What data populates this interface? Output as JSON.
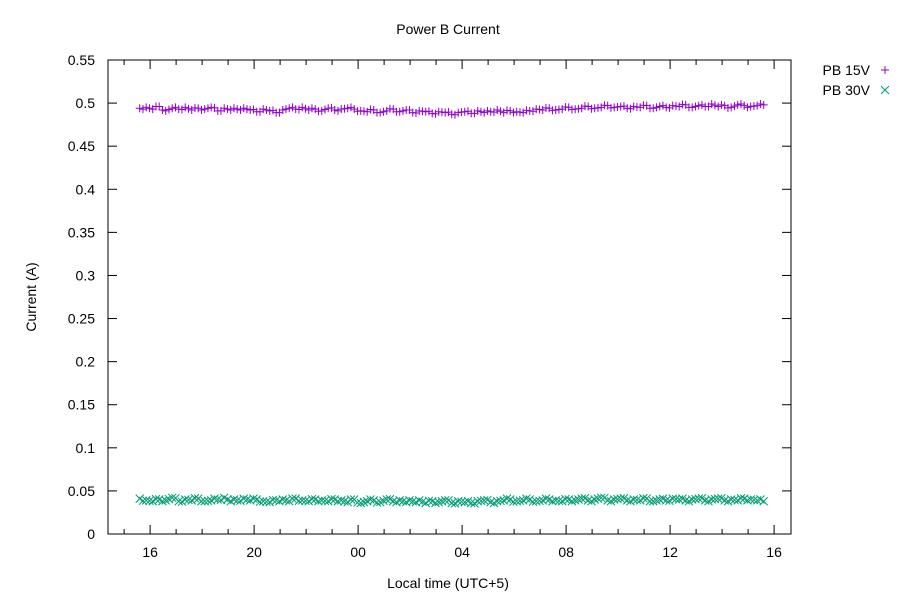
{
  "chart_data": {
    "type": "scatter",
    "title": "Power B Current",
    "xlabel": "Local time (UTC+5)",
    "ylabel": "Current (A)",
    "xlim_hours": [
      14.38,
      40.65
    ],
    "ylim": [
      0,
      0.55
    ],
    "x_ticks": [
      {
        "hour": 16,
        "label": "16"
      },
      {
        "hour": 20,
        "label": "20"
      },
      {
        "hour": 24,
        "label": "00"
      },
      {
        "hour": 28,
        "label": "04"
      },
      {
        "hour": 32,
        "label": "08"
      },
      {
        "hour": 36,
        "label": "12"
      },
      {
        "hour": 40,
        "label": "16"
      }
    ],
    "y_ticks": [
      "0",
      "0.05",
      "0.1",
      "0.15",
      "0.2",
      "0.25",
      "0.3",
      "0.35",
      "0.4",
      "0.45",
      "0.5",
      "0.55"
    ],
    "grid": false,
    "legend_position": "outside-top-right",
    "x_start_hour": 15.6,
    "x_end_hour": 39.6,
    "series": [
      {
        "name": "PB 15V",
        "marker": "+",
        "color": "#9400d3",
        "values": [
          0.494,
          0.495,
          0.493,
          0.496,
          0.491,
          0.494,
          0.493,
          0.495,
          0.492,
          0.494,
          0.493,
          0.495,
          0.491,
          0.494,
          0.492,
          0.493,
          0.494,
          0.492,
          0.49,
          0.493,
          0.491,
          0.489,
          0.492,
          0.494,
          0.493,
          0.495,
          0.492,
          0.493,
          0.491,
          0.494,
          0.492,
          0.493,
          0.494,
          0.493,
          0.491,
          0.49,
          0.492,
          0.489,
          0.491,
          0.493,
          0.49,
          0.492,
          0.489,
          0.491,
          0.49,
          0.488,
          0.49,
          0.489,
          0.487,
          0.489,
          0.49,
          0.488,
          0.491,
          0.489,
          0.49,
          0.492,
          0.489,
          0.491,
          0.49,
          0.489,
          0.491,
          0.493,
          0.492,
          0.494,
          0.492,
          0.493,
          0.495,
          0.493,
          0.494,
          0.496,
          0.494,
          0.495,
          0.497,
          0.495,
          0.496,
          0.494,
          0.496,
          0.495,
          0.497,
          0.494,
          0.496,
          0.495,
          0.497,
          0.496,
          0.498,
          0.495,
          0.497,
          0.496,
          0.499,
          0.496,
          0.497,
          0.495,
          0.498,
          0.497,
          0.496,
          0.497,
          0.498
        ]
      },
      {
        "name": "PB 30V",
        "marker": "x",
        "color": "#009e73",
        "values": [
          0.041,
          0.039,
          0.038,
          0.04,
          0.039,
          0.042,
          0.038,
          0.04,
          0.039,
          0.041,
          0.038,
          0.039,
          0.04,
          0.042,
          0.038,
          0.039,
          0.041,
          0.039,
          0.04,
          0.038,
          0.037,
          0.039,
          0.04,
          0.038,
          0.041,
          0.039,
          0.038,
          0.04,
          0.039,
          0.038,
          0.04,
          0.039,
          0.037,
          0.04,
          0.036,
          0.038,
          0.039,
          0.037,
          0.04,
          0.038,
          0.039,
          0.037,
          0.038,
          0.039,
          0.036,
          0.038,
          0.037,
          0.039,
          0.036,
          0.038,
          0.037,
          0.036,
          0.038,
          0.039,
          0.037,
          0.038,
          0.039,
          0.04,
          0.038,
          0.039,
          0.04,
          0.038,
          0.039,
          0.04,
          0.039,
          0.038,
          0.04,
          0.039,
          0.041,
          0.039,
          0.04,
          0.042,
          0.039,
          0.04,
          0.041,
          0.039,
          0.04,
          0.039,
          0.041,
          0.038,
          0.04,
          0.039,
          0.041,
          0.04,
          0.039,
          0.04,
          0.041,
          0.039,
          0.04,
          0.041,
          0.039,
          0.04,
          0.039,
          0.041,
          0.04,
          0.039,
          0.038
        ]
      }
    ]
  }
}
